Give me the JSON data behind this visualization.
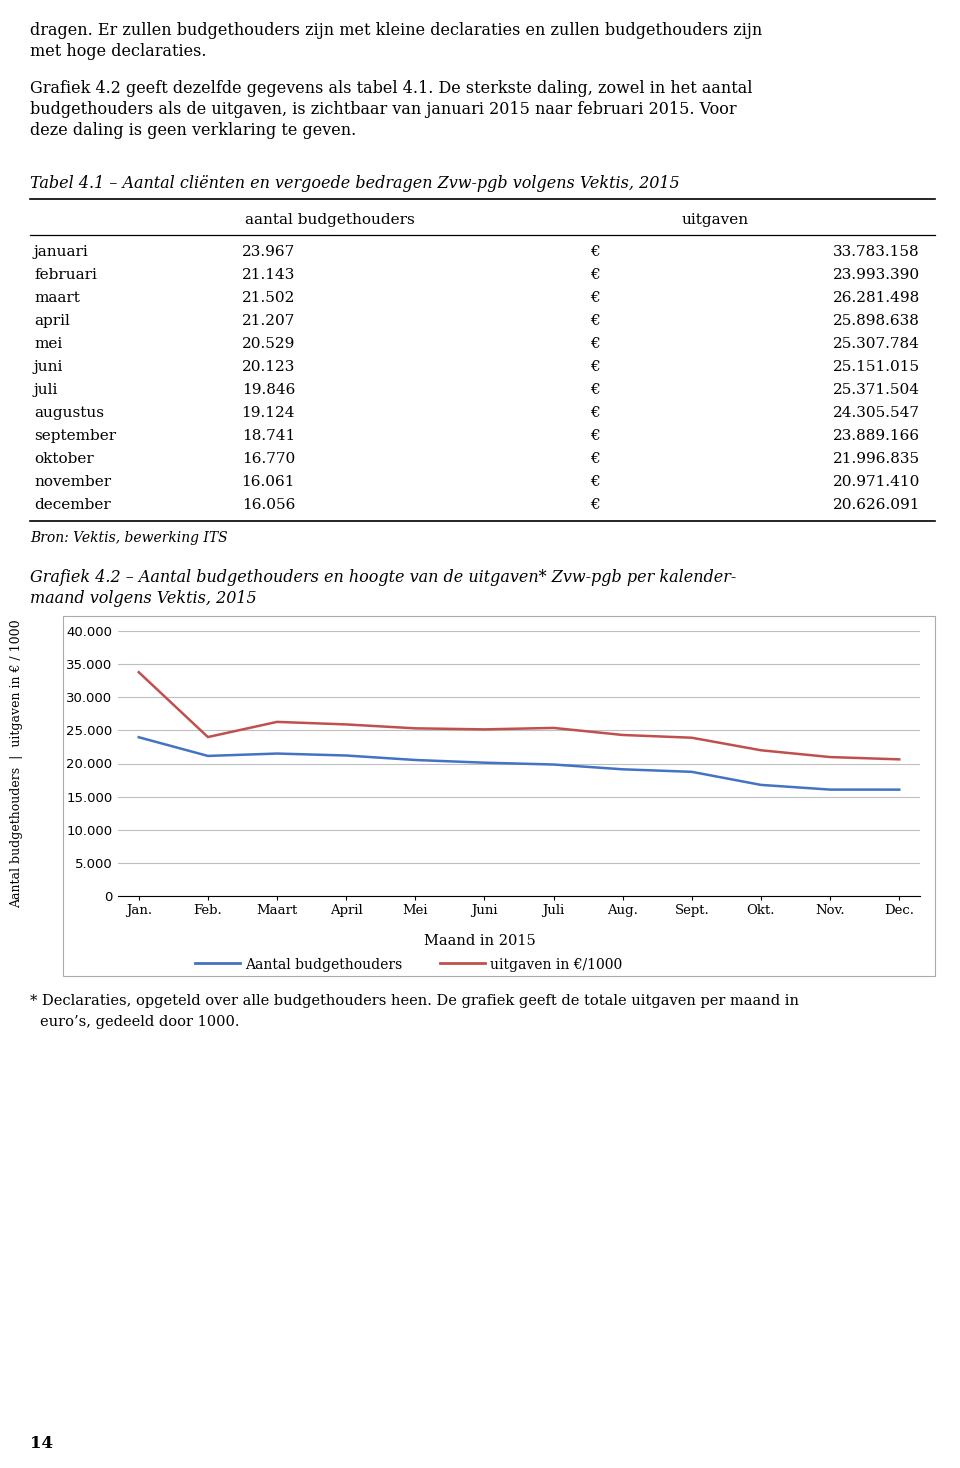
{
  "text_intro_lines": [
    "dragen. Er zullen budgethouders zijn met kleine declaraties en zullen budgethouders zijn",
    "met hoge declaraties."
  ],
  "text_para_lines": [
    "Grafiek 4.2 geeft dezelfde gegevens als tabel 4.1. De sterkste daling, zowel in het aantal",
    "budgethouders als de uitgaven, is zichtbaar van januari 2015 naar februari 2015. Voor",
    "deze daling is geen verklaring te geven."
  ],
  "table_title": "Tabel 4.1 – Aantal cliënten en vergoede bedragen Zvw-pgb volgens Vektis, 2015",
  "table_header_col1": "aantal budgethouders",
  "table_header_col2": "uitgaven",
  "months": [
    "januari",
    "februari",
    "maart",
    "april",
    "mei",
    "juni",
    "juli",
    "augustus",
    "september",
    "oktober",
    "november",
    "december"
  ],
  "budgethouders": [
    23967,
    21143,
    21502,
    21207,
    20529,
    20123,
    19846,
    19124,
    18741,
    16770,
    16061,
    16056
  ],
  "uitgaven_vals": [
    33783158,
    23993390,
    26281498,
    25898638,
    25307784,
    25151015,
    25371504,
    24305547,
    23889166,
    21996835,
    20971410,
    20626091
  ],
  "budgethouders_str": [
    "23.967",
    "21.143",
    "21.502",
    "21.207",
    "20.529",
    "20.123",
    "19.846",
    "19.124",
    "18.741",
    "16.770",
    "16.061",
    "16.056"
  ],
  "uitgaven_str": [
    "33.783.158",
    "23.993.390",
    "26.281.498",
    "25.898.638",
    "25.307.784",
    "25.151.015",
    "25.371.504",
    "24.305.547",
    "23.889.166",
    "21.996.835",
    "20.971.410",
    "20.626.091"
  ],
  "source": "Bron: Vektis, bewerking ITS",
  "chart_title_line1": "Grafiek 4.2 – Aantal budgethouders en hoogte van de uitgaven* Zvw-pgb per kalender-",
  "chart_title_line2": "maand volgens Vektis, 2015",
  "x_labels": [
    "Jan.",
    "Feb.",
    "Maart",
    "April",
    "Mei",
    "Juni",
    "Juli",
    "Aug.",
    "Sept.",
    "Okt.",
    "Nov.",
    "Dec."
  ],
  "xlabel": "Maand in 2015",
  "ylabel_line1": "Aantal budgethouders  |  uitgaven in € / 1000",
  "legend1": "Aantal budgethouders",
  "legend2": "uitgaven in €/1000",
  "footnote_line1": "* Declaraties, opgeteld over alle budgethouders heen. De grafiek geeft de totale uitgaven per maand in",
  "footnote_line2": "  euro’s, gedeeld door 1000.",
  "page_number": "14",
  "blue_color": "#4472C4",
  "red_color": "#C0504D",
  "grid_color": "#BFBFBF",
  "box_color": "#AAAAAA",
  "ylim": [
    0,
    40000
  ],
  "yticks": [
    0,
    5000,
    10000,
    15000,
    20000,
    25000,
    30000,
    35000,
    40000
  ]
}
